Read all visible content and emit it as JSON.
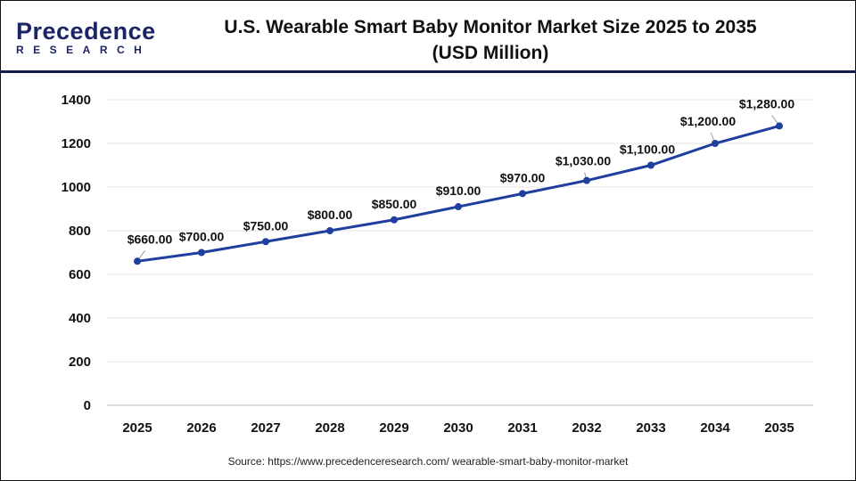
{
  "brand": {
    "line1": "Precedence",
    "line2": "RESEARCH"
  },
  "source": "Source: https://www.precedenceresearch.com/ wearable-smart-baby-monitor-market",
  "chart_data": {
    "type": "line",
    "title": "U.S. Wearable Smart Baby Monitor Market Size 2025 to 2035",
    "subtitle": "(USD Million)",
    "xlabel": "",
    "ylabel": "",
    "categories": [
      "2025",
      "2026",
      "2027",
      "2028",
      "2029",
      "2030",
      "2031",
      "2032",
      "2033",
      "2034",
      "2035"
    ],
    "series": [
      {
        "values": [
          660,
          700,
          750,
          800,
          850,
          910,
          970,
          1030,
          1100,
          1200,
          1280
        ]
      }
    ],
    "data_labels": [
      "$660.00",
      "$700.00",
      "$750.00",
      "$800.00",
      "$850.00",
      "$910.00",
      "$970.00",
      "$1,030.00",
      "$1,100.00",
      "$1,200.00",
      "$1,280.00"
    ],
    "ylim": [
      0,
      1400
    ],
    "yticks": [
      0,
      200,
      400,
      600,
      800,
      1000,
      1200,
      1400
    ],
    "grid": true,
    "legend": "none",
    "line_color": "#1f3f9e"
  }
}
